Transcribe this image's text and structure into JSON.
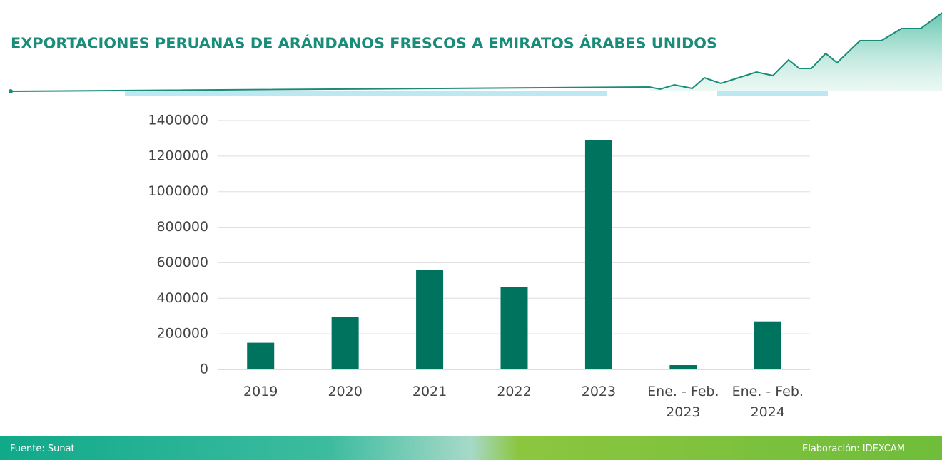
{
  "header": {
    "title": "EXPORTACIONES PERUANAS DE ARÁNDANOS FRESCOS A EMIRATOS ÁRABES UNIDOS"
  },
  "chart_data": {
    "type": "bar",
    "categories": [
      "2019",
      "2020",
      "2021",
      "2022",
      "2023",
      "Ene. - Feb. 2023",
      "Ene. - Feb. 2024"
    ],
    "values": [
      150000,
      295000,
      558000,
      465000,
      1290000,
      24000,
      270000
    ],
    "color": "#00735f",
    "ylim": [
      0,
      1400000
    ],
    "yticks": [
      0,
      200000,
      400000,
      600000,
      800000,
      1000000,
      1200000,
      1400000
    ],
    "grid": true
  },
  "footer": {
    "source": "Fuente: Sunat",
    "credit": "Elaboración: IDEXCAM"
  }
}
